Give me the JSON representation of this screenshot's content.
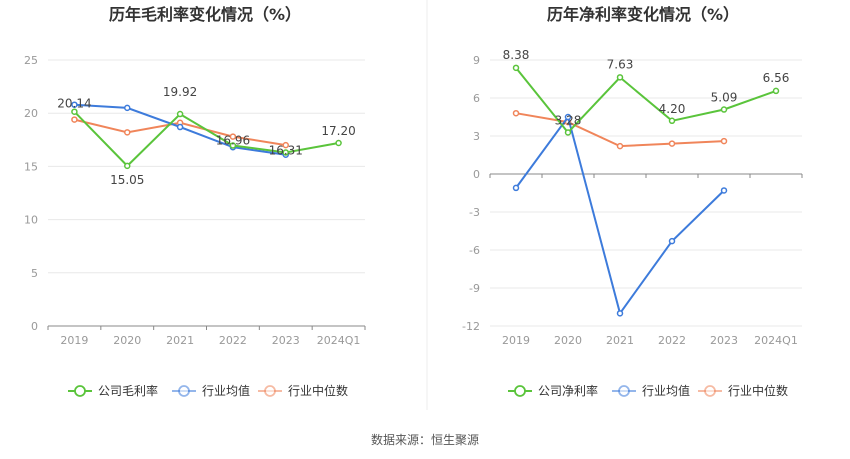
{
  "chart_data": [
    {
      "type": "line",
      "title": "历年毛利率变化情况（%）",
      "categories": [
        "2019",
        "2020",
        "2021",
        "2022",
        "2023",
        "2024Q1"
      ],
      "yticks": [
        "0",
        "5",
        "10",
        "15",
        "20",
        "25"
      ],
      "ylim": [
        0,
        25
      ],
      "grid": true,
      "legend": "bottom",
      "series": [
        {
          "name": "公司毛利率",
          "color": "#5ac43b",
          "values": [
            20.14,
            15.05,
            19.92,
            16.96,
            16.31,
            17.2
          ],
          "labels": [
            "20.14",
            "15.05",
            "19.92",
            "16.96",
            "16.31",
            "17.20"
          ]
        },
        {
          "name": "行业均值",
          "color": "#3d7bdb",
          "values": [
            20.8,
            20.5,
            18.7,
            16.8,
            16.1,
            null
          ]
        },
        {
          "name": "行业中位数",
          "color": "#f0855a",
          "values": [
            19.4,
            18.2,
            19.1,
            17.8,
            17.0,
            null
          ]
        }
      ]
    },
    {
      "type": "line",
      "title": "历年净利率变化情况（%）",
      "categories": [
        "2019",
        "2020",
        "2021",
        "2022",
        "2023",
        "2024Q1"
      ],
      "yticks": [
        "-12",
        "-9",
        "-6",
        "-3",
        "0",
        "3",
        "6",
        "9"
      ],
      "ylim": [
        -12,
        9
      ],
      "grid": true,
      "legend": "bottom",
      "series": [
        {
          "name": "公司净利率",
          "color": "#5ac43b",
          "values": [
            8.38,
            3.28,
            7.63,
            4.2,
            5.09,
            6.56
          ],
          "labels": [
            "8.38",
            "3.28",
            "7.63",
            "4.20",
            "5.09",
            "6.56"
          ]
        },
        {
          "name": "行业均值",
          "color": "#3d7bdb",
          "values": [
            -1.1,
            4.5,
            -11.0,
            -5.3,
            -1.3,
            null
          ]
        },
        {
          "name": "行业中位数",
          "color": "#f0855a",
          "values": [
            4.8,
            4.1,
            2.2,
            2.4,
            2.6,
            null
          ]
        }
      ]
    }
  ],
  "footer": {
    "source": "数据来源：恒生聚源"
  }
}
